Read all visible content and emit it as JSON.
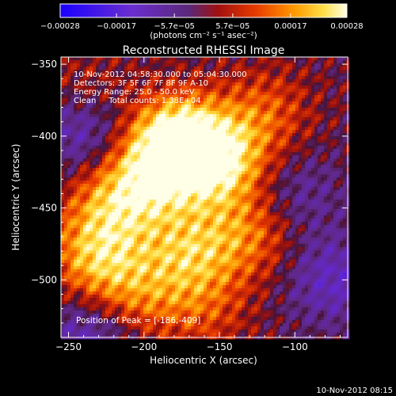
{
  "chart_data": {
    "type": "heatmap",
    "title": "Reconstructed RHESSI Image",
    "xlabel": "Heliocentric X (arcsec)",
    "ylabel": "Heliocentric Y (arcsec)",
    "xlim": [
      -255,
      -65
    ],
    "ylim": [
      -540,
      -345
    ],
    "xticks": [
      -250,
      -200,
      -150,
      -100
    ],
    "yticks": [
      -350,
      -400,
      -450,
      -500
    ],
    "xtick_labels": [
      "−250",
      "−200",
      "−150",
      "−100"
    ],
    "ytick_labels": [
      "−350",
      "−400",
      "−450",
      "−500"
    ],
    "annotations": [
      "10-Nov-2012 04:58:30.000 to 05:04:30.000",
      "Detectors: 3F 5F 6F 7F 8F 9F A-10",
      "Energy Range: 25.0 - 50.0 keV",
      "Clean     Total counts: 1.38E+04"
    ],
    "peak_label": "Position of Peak = [-186,-409]",
    "peak": [
      -186,
      -409
    ],
    "colorbar": {
      "range": [
        -0.00028,
        0.00028
      ],
      "tick_values": [
        -0.00028,
        -0.00017,
        -5.7e-05,
        5.7e-05,
        0.00017,
        0.00028
      ],
      "tick_labels": [
        "−0.00028",
        "−0.00017",
        "−5.7e−05",
        "5.7e−05",
        "0.00017",
        "0.00028"
      ],
      "units_label": "(photons cm⁻² s⁻¹ asec⁻²)"
    },
    "sources": [
      {
        "x": -178,
        "y": -402,
        "amp": 0.00028
      },
      {
        "x": -150,
        "y": -418,
        "amp": 0.00024
      },
      {
        "x": -196,
        "y": -428,
        "amp": 0.00019
      },
      {
        "x": -222,
        "y": -450,
        "amp": 0.00016
      },
      {
        "x": -232,
        "y": -487,
        "amp": 0.00018
      },
      {
        "x": -170,
        "y": -480,
        "amp": 0.00017
      },
      {
        "x": -130,
        "y": -468,
        "amp": 0.00013
      },
      {
        "x": -205,
        "y": -512,
        "amp": 0.00012
      },
      {
        "x": -120,
        "y": -384,
        "amp": 0.00011
      },
      {
        "x": -240,
        "y": -372,
        "amp": 8e-05
      },
      {
        "x": -160,
        "y": -520,
        "amp": 9e-05
      },
      {
        "x": -75,
        "y": -500,
        "amp": -0.00012
      },
      {
        "x": -240,
        "y": -395,
        "amp": -0.00014
      },
      {
        "x": -100,
        "y": -440,
        "amp": -8e-05
      },
      {
        "x": -235,
        "y": -535,
        "amp": -0.00012
      }
    ]
  },
  "timestamp": "10-Nov-2012 08:15"
}
